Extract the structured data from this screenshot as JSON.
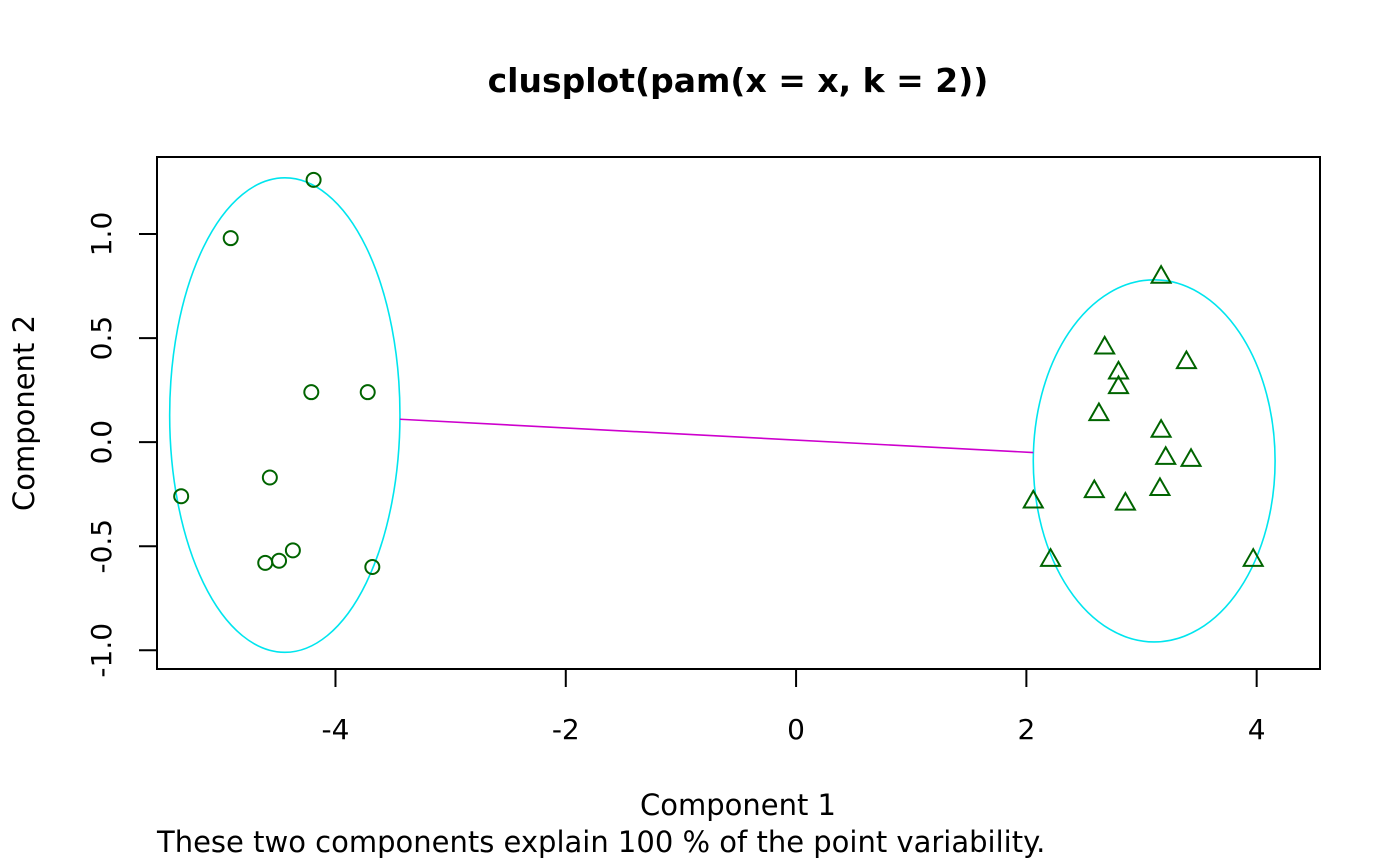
{
  "chart_data": {
    "type": "scatter",
    "title": "clusplot(pam(x = x, k = 2))",
    "xlabel": "Component 1",
    "ylabel": "Component 2",
    "subtitle": "These two components explain 100 % of the point variability.",
    "xlim": [
      -5.55,
      4.55
    ],
    "ylim": [
      -1.09,
      1.37
    ],
    "x_ticks": [
      -4,
      -2,
      0,
      2,
      4
    ],
    "y_ticks": [
      -1.0,
      -0.5,
      0.0,
      0.5,
      1.0
    ],
    "x_tick_labels": [
      "-4",
      "-2",
      "0",
      "2",
      "4"
    ],
    "y_tick_labels": [
      "-1.0",
      "-0.5",
      "0.0",
      "0.5",
      "1.0"
    ],
    "point_color": "#006400",
    "ellipse_color": "#00e5ee",
    "connector_color": "#cd00cd",
    "series": [
      {
        "marker": "circle",
        "points": [
          [
            -4.19,
            1.26
          ],
          [
            -4.91,
            0.98
          ],
          [
            -4.21,
            0.24
          ],
          [
            -3.72,
            0.24
          ],
          [
            -4.57,
            -0.17
          ],
          [
            -5.34,
            -0.26
          ],
          [
            -4.37,
            -0.52
          ],
          [
            -4.61,
            -0.58
          ],
          [
            -4.49,
            -0.57
          ],
          [
            -3.68,
            -0.6
          ]
        ],
        "ellipse": {
          "center": [
            -4.44,
            0.13
          ],
          "rx": 1.0,
          "ry": 1.14
        }
      },
      {
        "marker": "triangle",
        "points": [
          [
            3.17,
            0.8
          ],
          [
            2.68,
            0.46
          ],
          [
            2.8,
            0.34
          ],
          [
            3.39,
            0.39
          ],
          [
            2.8,
            0.27
          ],
          [
            2.63,
            0.14
          ],
          [
            3.17,
            0.06
          ],
          [
            3.21,
            -0.07
          ],
          [
            3.43,
            -0.08
          ],
          [
            2.59,
            -0.23
          ],
          [
            3.16,
            -0.22
          ],
          [
            2.86,
            -0.29
          ],
          [
            2.06,
            -0.28
          ],
          [
            2.21,
            -0.56
          ],
          [
            3.97,
            -0.56
          ]
        ],
        "ellipse": {
          "center": [
            3.11,
            -0.09
          ],
          "rx": 1.05,
          "ry": 0.87
        }
      }
    ],
    "connector": {
      "from": [
        -3.44,
        0.11
      ],
      "to": [
        2.06,
        -0.05
      ]
    }
  }
}
